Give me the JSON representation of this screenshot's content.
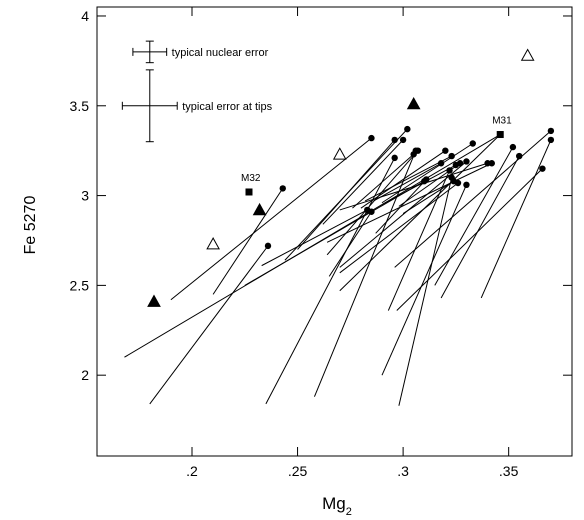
{
  "chart_data": {
    "type": "scatter",
    "xlabel_base": "Mg",
    "xlabel_sub": "2",
    "ylabel": "Fe 5270",
    "xlim": [
      0.155,
      0.38
    ],
    "ylim": [
      1.55,
      4.05
    ],
    "x_ticks": [
      {
        "value": 0.2,
        "label": ".2"
      },
      {
        "value": 0.25,
        "label": ".25"
      },
      {
        "value": 0.3,
        "label": ".3"
      },
      {
        "value": 0.35,
        "label": ".35"
      }
    ],
    "y_ticks": [
      {
        "value": 2,
        "label": "2"
      },
      {
        "value": 2.5,
        "label": "2.5"
      },
      {
        "value": 3,
        "label": "3"
      },
      {
        "value": 3.5,
        "label": "3.5"
      },
      {
        "value": 4,
        "label": "4"
      }
    ],
    "gradients": [
      {
        "start": [
          0.285,
          3.32
        ],
        "end": [
          0.19,
          2.42
        ]
      },
      {
        "start": [
          0.243,
          3.04
        ],
        "end": [
          0.21,
          2.45
        ]
      },
      {
        "start": [
          0.236,
          2.72
        ],
        "end": [
          0.18,
          1.84
        ]
      },
      {
        "start": [
          0.302,
          3.37
        ],
        "end": [
          0.244,
          2.64
        ]
      },
      {
        "start": [
          0.296,
          3.31
        ],
        "end": [
          0.25,
          2.7
        ]
      },
      {
        "start": [
          0.3,
          3.31
        ],
        "end": [
          0.262,
          2.84
        ]
      },
      {
        "start": [
          0.307,
          3.25
        ],
        "end": [
          0.264,
          2.67
        ]
      },
      {
        "start": [
          0.305,
          3.23
        ],
        "end": [
          0.276,
          2.93
        ]
      },
      {
        "start": [
          0.32,
          3.25
        ],
        "end": [
          0.28,
          2.93
        ]
      },
      {
        "start": [
          0.323,
          3.22
        ],
        "end": [
          0.282,
          2.97
        ]
      },
      {
        "start": [
          0.318,
          3.18
        ],
        "end": [
          0.286,
          2.97
        ]
      },
      {
        "start": [
          0.325,
          3.17
        ],
        "end": [
          0.29,
          2.95
        ]
      },
      {
        "start": [
          0.333,
          3.29
        ],
        "end": [
          0.29,
          2.96
        ]
      },
      {
        "start": [
          0.34,
          3.18
        ],
        "end": [
          0.27,
          2.92
        ]
      },
      {
        "start": [
          0.342,
          3.18
        ],
        "end": [
          0.264,
          2.74
        ]
      },
      {
        "start": [
          0.327,
          3.18
        ],
        "end": [
          0.298,
          2.94
        ]
      },
      {
        "start": [
          0.33,
          3.19
        ],
        "end": [
          0.27,
          2.6
        ]
      },
      {
        "start": [
          0.324,
          3.08
        ],
        "end": [
          0.3,
          2.9
        ]
      },
      {
        "start": [
          0.326,
          3.07
        ],
        "end": [
          0.27,
          2.57
        ]
      },
      {
        "start": [
          0.311,
          3.09
        ],
        "end": [
          0.287,
          2.79
        ]
      },
      {
        "start": [
          0.296,
          3.21
        ],
        "end": [
          0.235,
          1.84
        ]
      },
      {
        "start": [
          0.306,
          3.25
        ],
        "end": [
          0.258,
          1.88
        ]
      },
      {
        "start": [
          0.322,
          3.14
        ],
        "end": [
          0.293,
          2.36
        ]
      },
      {
        "start": [
          0.283,
          2.92
        ],
        "end": [
          0.233,
          2.61
        ]
      },
      {
        "start": [
          0.323,
          3.1
        ],
        "end": [
          0.298,
          1.83
        ]
      },
      {
        "start": [
          0.33,
          3.06
        ],
        "end": [
          0.29,
          2.0
        ]
      },
      {
        "start": [
          0.352,
          3.27
        ],
        "end": [
          0.315,
          2.5
        ]
      },
      {
        "start": [
          0.355,
          3.22
        ],
        "end": [
          0.318,
          2.43
        ]
      },
      {
        "start": [
          0.37,
          3.36
        ],
        "end": [
          0.296,
          2.6
        ]
      },
      {
        "start": [
          0.37,
          3.31
        ],
        "end": [
          0.337,
          2.43
        ]
      },
      {
        "start": [
          0.366,
          3.15
        ],
        "end": [
          0.297,
          2.36
        ]
      },
      {
        "start": [
          0.346,
          3.34
        ],
        "end": [
          0.168,
          2.1
        ]
      },
      {
        "start": [
          0.346,
          3.34
        ],
        "end": [
          0.27,
          2.47
        ]
      },
      {
        "start": [
          0.31,
          3.08
        ],
        "end": [
          0.225,
          2.5
        ]
      },
      {
        "start": [
          0.285,
          2.91
        ],
        "end": [
          0.265,
          2.55
        ]
      }
    ],
    "filled_triangles": [
      [
        0.182,
        2.41
      ],
      [
        0.232,
        2.92
      ],
      [
        0.305,
        3.51
      ]
    ],
    "open_triangles": [
      [
        0.21,
        2.73
      ],
      [
        0.27,
        3.23
      ],
      [
        0.359,
        3.78
      ]
    ],
    "squares": [
      {
        "x": 0.227,
        "y": 3.02,
        "label": "M32"
      },
      {
        "x": 0.346,
        "y": 3.34,
        "label": "M31"
      }
    ],
    "error_bars": [
      {
        "x": 0.18,
        "y": 3.8,
        "xerr": 0.008,
        "yerr": 0.06,
        "label": "typical nuclear error"
      },
      {
        "x": 0.18,
        "y": 3.5,
        "xerr": 0.013,
        "yerr": 0.2,
        "label": "typical error at tips"
      }
    ]
  }
}
